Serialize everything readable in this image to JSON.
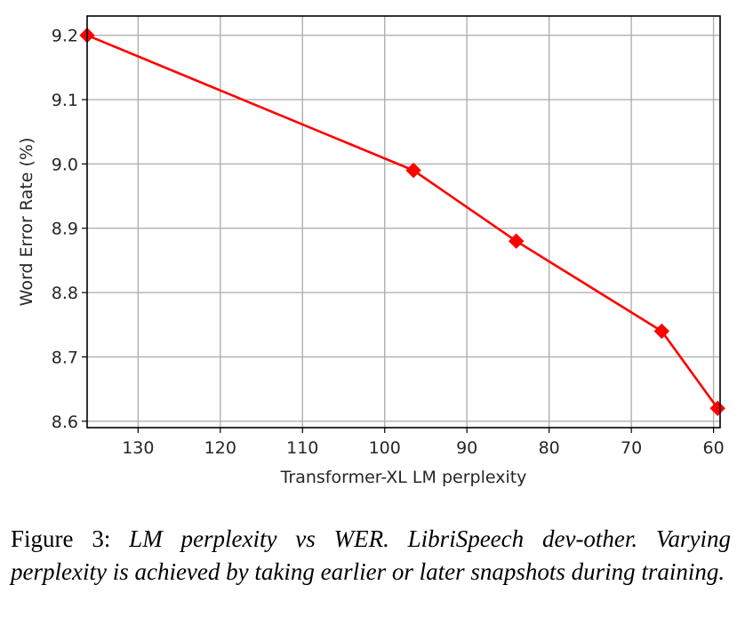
{
  "chart_data": {
    "type": "line",
    "xlabel": "Transformer-XL LM perplexity",
    "ylabel": "Word Error Rate (%)",
    "xlim": [
      136.2,
      59.2
    ],
    "ylim": [
      8.59,
      9.23
    ],
    "x_inverted": true,
    "grid": true,
    "xticks": [
      130,
      120,
      110,
      100,
      90,
      80,
      70,
      60
    ],
    "xtick_labels": [
      "130",
      "120",
      "110",
      "100",
      "90",
      "80",
      "70",
      "60"
    ],
    "yticks": [
      8.6,
      8.7,
      8.8,
      8.9,
      9.0,
      9.1,
      9.2
    ],
    "ytick_labels": [
      "8.6",
      "8.7",
      "8.8",
      "8.9",
      "9.0",
      "9.1",
      "9.2"
    ],
    "series": [
      {
        "color": "#ff0000",
        "marker": "diamond",
        "x": [
          136.2,
          96.5,
          84.0,
          66.3,
          59.5
        ],
        "y": [
          9.2,
          8.99,
          8.88,
          8.74,
          8.62
        ]
      }
    ]
  },
  "caption": {
    "label": "Figure 3:",
    "text": "LM perplexity vs WER. LibriSpeech dev-other. Varying perplexity is achieved by taking earlier or later snapshots during training."
  }
}
